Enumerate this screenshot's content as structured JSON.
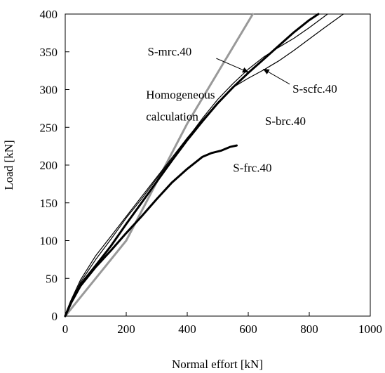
{
  "chart_data": {
    "type": "line",
    "title": "",
    "xlabel": "Normal effort [kN]",
    "ylabel": "Load [kN]",
    "xlim": [
      0,
      1000
    ],
    "ylim": [
      0,
      400
    ],
    "xticks": [
      "0",
      "200",
      "400",
      "600",
      "800",
      "1000"
    ],
    "yticks": [
      "0",
      "50",
      "100",
      "150",
      "200",
      "250",
      "300",
      "350",
      "400"
    ],
    "grid": false,
    "legend": "none",
    "series": [
      {
        "name": "Homogeneous calculation",
        "color": "#999999",
        "stroke": "thick",
        "points": [
          [
            0,
            0
          ],
          [
            200,
            100
          ],
          [
            400,
            255
          ],
          [
            615,
            400
          ]
        ]
      },
      {
        "name": "S-mrc.40",
        "color": "#000000",
        "stroke": "thick",
        "points": [
          [
            0,
            0
          ],
          [
            20,
            20
          ],
          [
            50,
            42
          ],
          [
            100,
            67
          ],
          [
            150,
            93
          ],
          [
            200,
            122
          ],
          [
            250,
            150
          ],
          [
            300,
            178
          ],
          [
            350,
            206
          ],
          [
            400,
            233
          ],
          [
            450,
            258
          ],
          [
            500,
            282
          ],
          [
            550,
            303
          ],
          [
            600,
            322
          ],
          [
            650,
            340
          ],
          [
            700,
            358
          ],
          [
            750,
            376
          ],
          [
            800,
            392
          ],
          [
            830,
            400
          ]
        ]
      },
      {
        "name": "S-scfc.40",
        "color": "#000000",
        "stroke": "thin",
        "points": [
          [
            0,
            0
          ],
          [
            20,
            20
          ],
          [
            50,
            45
          ],
          [
            100,
            75
          ],
          [
            150,
            102
          ],
          [
            200,
            130
          ],
          [
            250,
            155
          ],
          [
            300,
            182
          ],
          [
            350,
            208
          ],
          [
            400,
            235
          ],
          [
            450,
            262
          ],
          [
            500,
            287
          ],
          [
            550,
            308
          ],
          [
            600,
            327
          ],
          [
            650,
            343
          ],
          [
            700,
            356
          ],
          [
            750,
            368
          ],
          [
            800,
            382
          ],
          [
            860,
            400
          ]
        ]
      },
      {
        "name": "S-brc.40",
        "color": "#000000",
        "stroke": "thin",
        "points": [
          [
            0,
            0
          ],
          [
            20,
            22
          ],
          [
            50,
            48
          ],
          [
            100,
            80
          ],
          [
            150,
            106
          ],
          [
            200,
            132
          ],
          [
            250,
            158
          ],
          [
            300,
            184
          ],
          [
            350,
            210
          ],
          [
            400,
            236
          ],
          [
            450,
            260
          ],
          [
            500,
            283
          ],
          [
            550,
            303
          ],
          [
            600,
            315
          ],
          [
            650,
            326
          ],
          [
            700,
            338
          ],
          [
            750,
            352
          ],
          [
            800,
            367
          ],
          [
            850,
            382
          ],
          [
            912,
            400
          ]
        ]
      },
      {
        "name": "S-frc.40",
        "color": "#000000",
        "stroke": "thick",
        "points": [
          [
            0,
            0
          ],
          [
            20,
            18
          ],
          [
            50,
            40
          ],
          [
            100,
            65
          ],
          [
            150,
            87
          ],
          [
            200,
            110
          ],
          [
            250,
            132
          ],
          [
            300,
            155
          ],
          [
            350,
            177
          ],
          [
            400,
            195
          ],
          [
            450,
            211
          ],
          [
            480,
            216
          ],
          [
            510,
            219
          ],
          [
            540,
            224
          ],
          [
            562,
            226
          ]
        ]
      }
    ],
    "annotations": [
      {
        "text": "Homogeneous",
        "x": 265,
        "y": 288
      },
      {
        "text": "calculation",
        "x": 265,
        "y": 259
      },
      {
        "text": "S-mrc.40",
        "x": 270,
        "y": 345,
        "arrow_to": [
          600,
          323
        ]
      },
      {
        "text": "S-scfc.40",
        "x": 745,
        "y": 296,
        "arrow_to": [
          650,
          327
        ]
      },
      {
        "text": "S-brc.40",
        "x": 655,
        "y": 253
      },
      {
        "text": "S-frc.40",
        "x": 550,
        "y": 191
      }
    ]
  }
}
